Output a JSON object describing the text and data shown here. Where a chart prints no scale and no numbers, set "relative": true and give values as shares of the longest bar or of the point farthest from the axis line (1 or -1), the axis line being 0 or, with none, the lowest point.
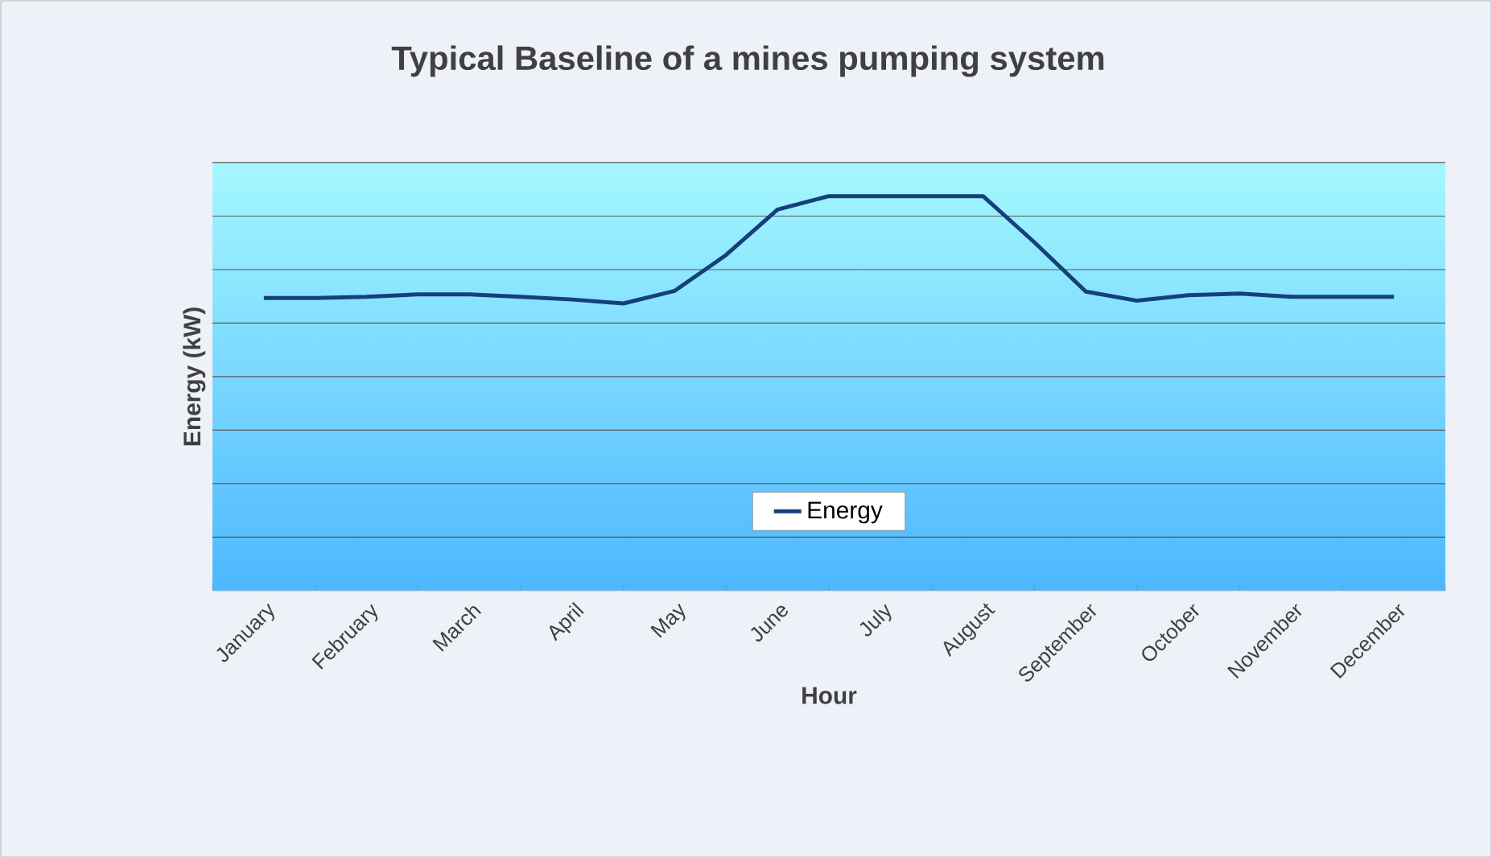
{
  "chart_data": {
    "type": "line",
    "title": "Typical Baseline of a mines pumping system",
    "xlabel": "Hour",
    "ylabel": "Energy (kW)",
    "categories": [
      "January",
      null,
      "February",
      null,
      "March",
      null,
      "April",
      null,
      "May",
      null,
      "June",
      null,
      "July",
      null,
      "August",
      null,
      "September",
      null,
      "October",
      null,
      "November",
      null,
      "December"
    ],
    "relative": true,
    "series": [
      {
        "name": "Energy",
        "color": "#16407a",
        "values": [
          0.742,
          0.742,
          0.745,
          0.751,
          0.751,
          0.745,
          0.738,
          0.728,
          0.76,
          0.851,
          0.966,
          1,
          1,
          1,
          1,
          0.883,
          0.758,
          0.735,
          0.749,
          0.753,
          0.745,
          0.745,
          0.745
        ]
      }
    ],
    "grid": "y",
    "legend": "bottom",
    "marker": "none",
    "line_style": "solid"
  }
}
